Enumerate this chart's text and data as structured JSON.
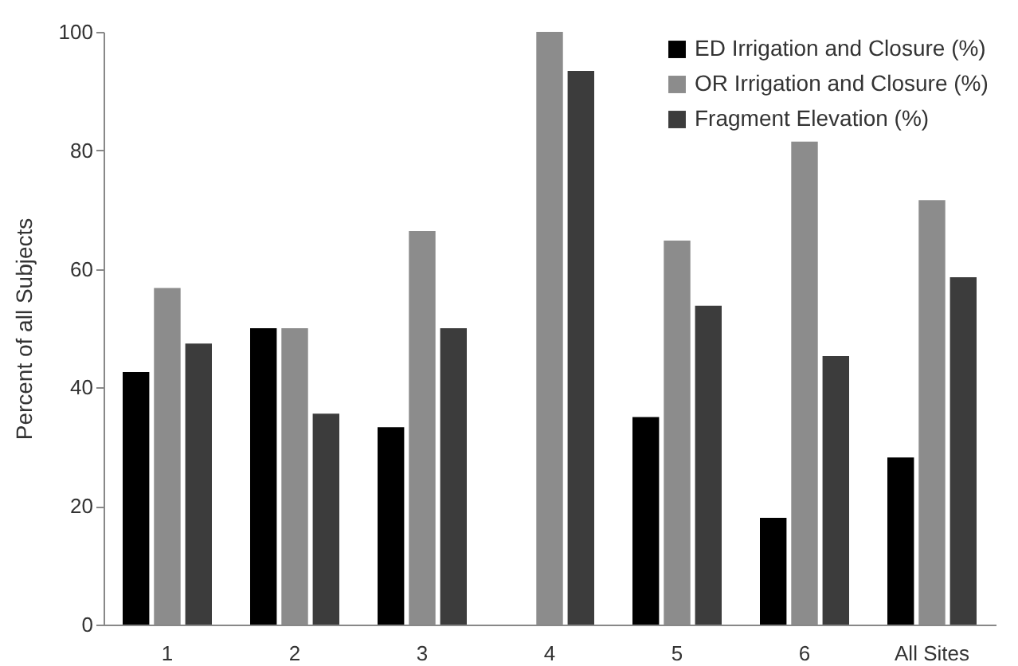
{
  "chart_data": {
    "type": "bar",
    "ylabel": "Percent of all Subjects",
    "categories": [
      "1",
      "2",
      "3",
      "4",
      "5",
      "6",
      "All Sites"
    ],
    "series": [
      {
        "name": "ED Irrigation and Closure (%)",
        "color": "#000000",
        "values": [
          42.6,
          50,
          33.3,
          0,
          35,
          18,
          28.2
        ]
      },
      {
        "name": "OR Irrigation and Closure (%)",
        "color": "#8c8c8c",
        "values": [
          56.8,
          50,
          66.4,
          100,
          64.8,
          81.5,
          71.6
        ]
      },
      {
        "name": "Fragment Elevation (%)",
        "color": "#3c3c3c",
        "values": [
          47.4,
          35.6,
          50,
          93.4,
          53.8,
          45.3,
          58.6
        ]
      }
    ],
    "ylim": [
      0,
      100
    ],
    "yticks": [
      0,
      20,
      40,
      60,
      80,
      100
    ],
    "grid": false,
    "legend": "top right"
  }
}
